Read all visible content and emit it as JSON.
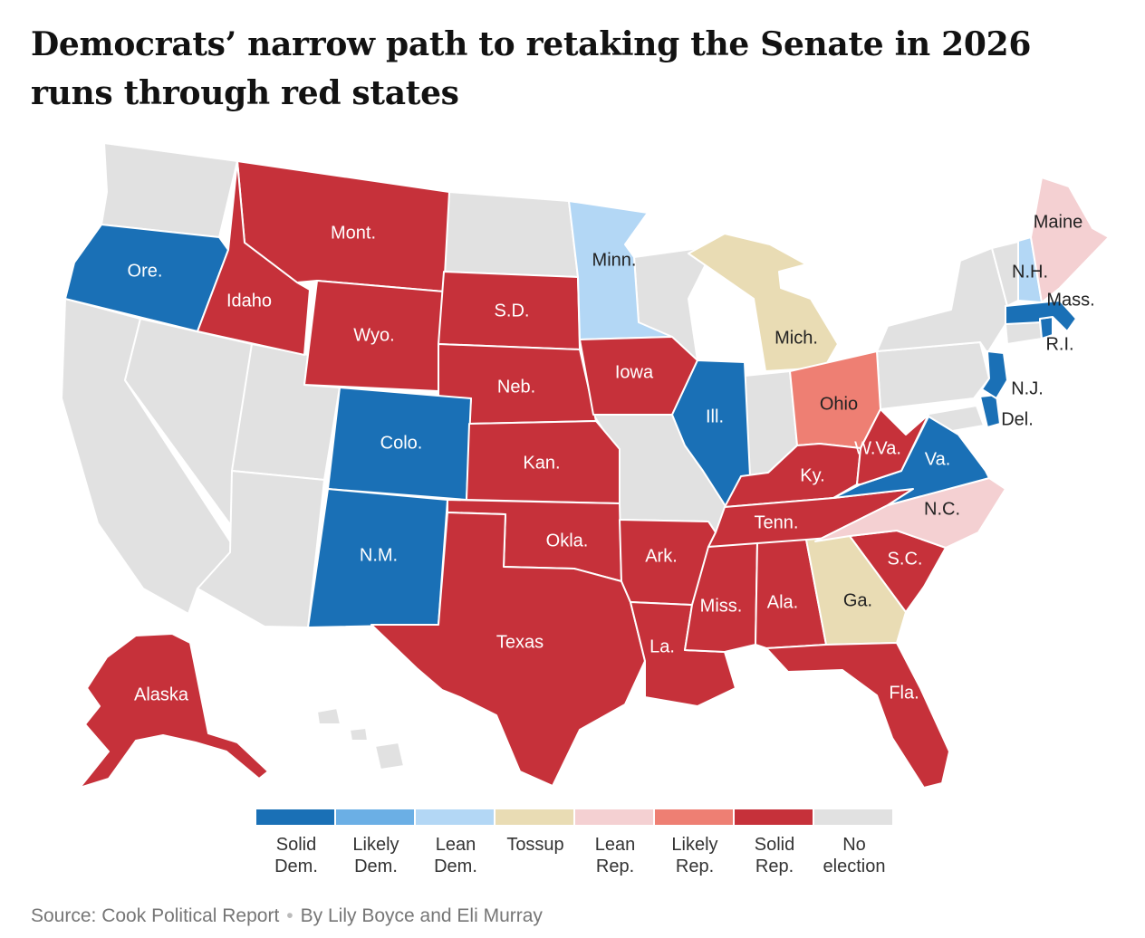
{
  "title": "Democrats’ narrow path to retaking the Senate in 2026 runs through red states",
  "colors": {
    "solid_dem": "#1a70b6",
    "likely_dem": "#6bafe5",
    "lean_dem": "#b3d7f5",
    "tossup": "#e9dcb4",
    "lean_rep": "#f4d0d2",
    "likely_rep": "#ee7f73",
    "solid_rep": "#c6313a",
    "no_election": "#e1e1e1"
  },
  "legend": [
    {
      "key": "solid_dem",
      "line1": "Solid",
      "line2": "Dem."
    },
    {
      "key": "likely_dem",
      "line1": "Likely",
      "line2": "Dem."
    },
    {
      "key": "lean_dem",
      "line1": "Lean",
      "line2": "Dem."
    },
    {
      "key": "tossup",
      "line1": "Tossup",
      "line2": ""
    },
    {
      "key": "lean_rep",
      "line1": "Lean",
      "line2": "Rep."
    },
    {
      "key": "likely_rep",
      "line1": "Likely",
      "line2": "Rep."
    },
    {
      "key": "solid_rep",
      "line1": "Solid",
      "line2": "Rep."
    },
    {
      "key": "no_election",
      "line1": "No",
      "line2": "election"
    }
  ],
  "states": {
    "ore": {
      "label": "Ore.",
      "rating": "solid_dem"
    },
    "mont": {
      "label": "Mont.",
      "rating": "solid_rep"
    },
    "idaho": {
      "label": "Idaho",
      "rating": "solid_rep"
    },
    "wyo": {
      "label": "Wyo.",
      "rating": "solid_rep"
    },
    "sd": {
      "label": "S.D.",
      "rating": "solid_rep"
    },
    "neb": {
      "label": "Neb.",
      "rating": "solid_rep"
    },
    "colo": {
      "label": "Colo.",
      "rating": "solid_dem"
    },
    "kan": {
      "label": "Kan.",
      "rating": "solid_rep"
    },
    "nm": {
      "label": "N.M.",
      "rating": "solid_dem"
    },
    "okla": {
      "label": "Okla.",
      "rating": "solid_rep"
    },
    "texas": {
      "label": "Texas",
      "rating": "solid_rep"
    },
    "minn": {
      "label": "Minn.",
      "rating": "lean_dem"
    },
    "iowa": {
      "label": "Iowa",
      "rating": "solid_rep"
    },
    "ark": {
      "label": "Ark.",
      "rating": "solid_rep"
    },
    "la": {
      "label": "La.",
      "rating": "solid_rep"
    },
    "ill": {
      "label": "Ill.",
      "rating": "solid_dem"
    },
    "mich": {
      "label": "Mich.",
      "rating": "tossup"
    },
    "ohio": {
      "label": "Ohio",
      "rating": "likely_rep"
    },
    "ky": {
      "label": "Ky.",
      "rating": "solid_rep"
    },
    "tenn": {
      "label": "Tenn.",
      "rating": "solid_rep"
    },
    "miss": {
      "label": "Miss.",
      "rating": "solid_rep"
    },
    "ala": {
      "label": "Ala.",
      "rating": "solid_rep"
    },
    "ga": {
      "label": "Ga.",
      "rating": "tossup"
    },
    "fla": {
      "label": "Fla.",
      "rating": "solid_rep"
    },
    "sc": {
      "label": "S.C.",
      "rating": "solid_rep"
    },
    "nc": {
      "label": "N.C.",
      "rating": "lean_rep"
    },
    "va": {
      "label": "Va.",
      "rating": "solid_dem"
    },
    "wva": {
      "label": "W.Va.",
      "rating": "solid_rep"
    },
    "del": {
      "label": "Del.",
      "rating": "solid_dem"
    },
    "nj": {
      "label": "N.J.",
      "rating": "solid_dem"
    },
    "ri": {
      "label": "R.I.",
      "rating": "solid_dem"
    },
    "mass": {
      "label": "Mass.",
      "rating": "solid_dem"
    },
    "nh": {
      "label": "N.H.",
      "rating": "lean_dem"
    },
    "maine": {
      "label": "Maine",
      "rating": "lean_rep"
    },
    "alaska": {
      "label": "Alaska",
      "rating": "solid_rep"
    },
    "wash": {
      "label": "",
      "rating": "no_election"
    },
    "calif": {
      "label": "",
      "rating": "no_election"
    },
    "nev": {
      "label": "",
      "rating": "no_election"
    },
    "utah": {
      "label": "",
      "rating": "no_election"
    },
    "ariz": {
      "label": "",
      "rating": "no_election"
    },
    "nd": {
      "label": "",
      "rating": "no_election"
    },
    "wis": {
      "label": "",
      "rating": "no_election"
    },
    "mo": {
      "label": "",
      "rating": "no_election"
    },
    "ind": {
      "label": "",
      "rating": "no_election"
    },
    "pa": {
      "label": "",
      "rating": "no_election"
    },
    "ny": {
      "label": "",
      "rating": "no_election"
    },
    "vt": {
      "label": "",
      "rating": "no_election"
    },
    "conn": {
      "label": "",
      "rating": "no_election"
    },
    "md": {
      "label": "",
      "rating": "no_election"
    },
    "hawaii": {
      "label": "",
      "rating": "no_election"
    }
  },
  "footer": {
    "source": "Source: Cook Political Report",
    "byline": "By Lily Boyce and Eli Murray"
  }
}
